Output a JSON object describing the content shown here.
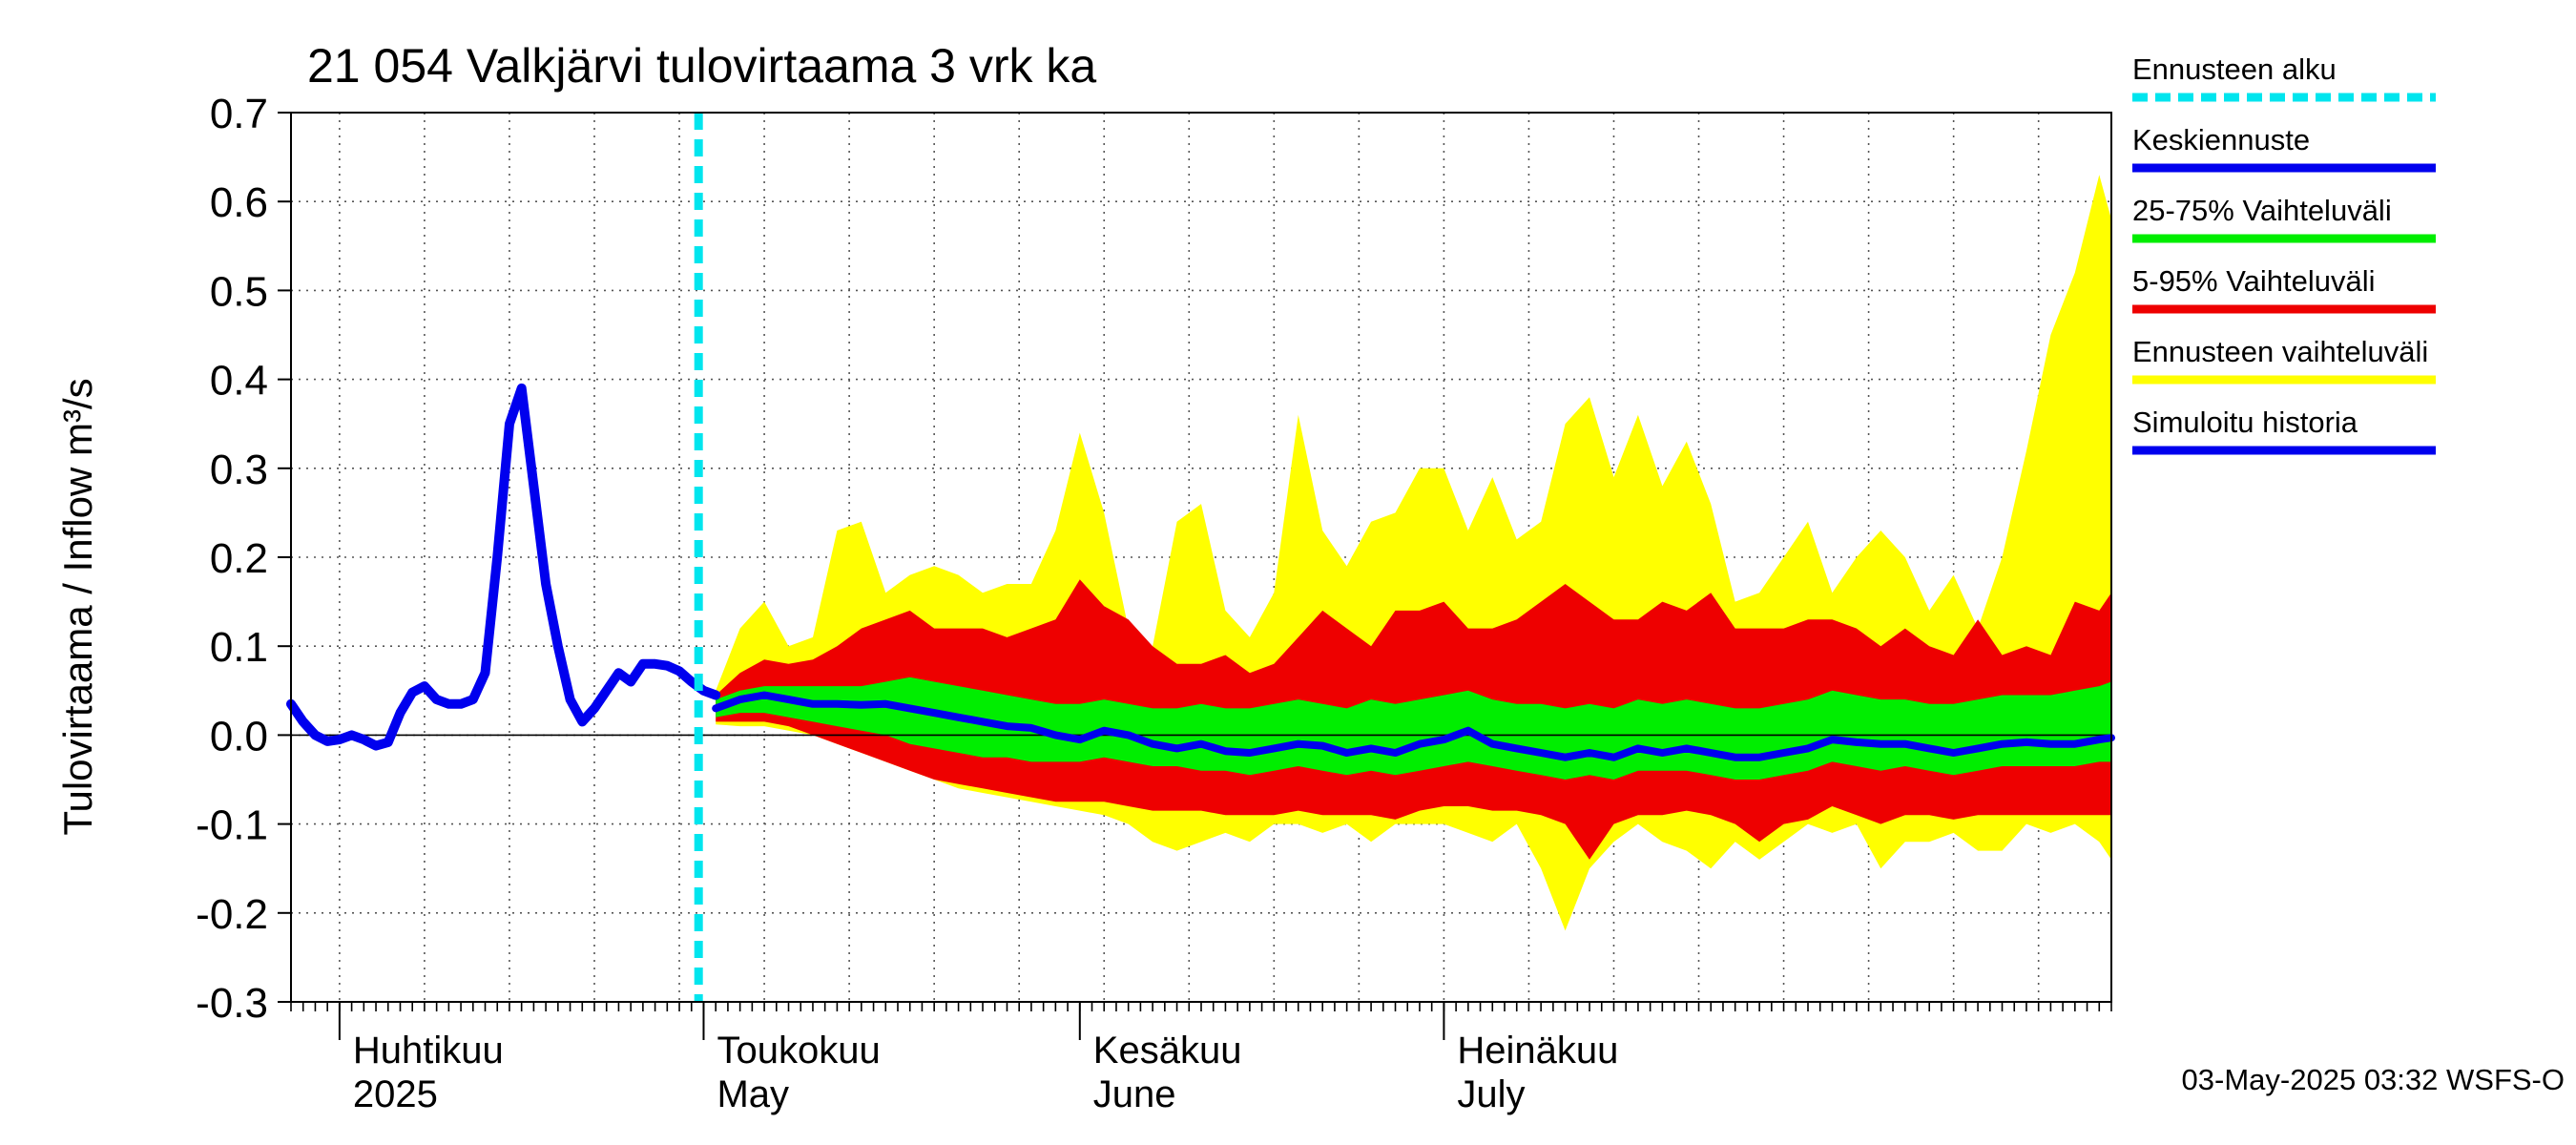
{
  "chart_data": {
    "type": "area",
    "title": "21 054 Valkjärvi tulovirtaama 3 vrk ka",
    "ylabel": "Tulovirtaama / Inflow    m³/s",
    "ylim": [
      -0.3,
      0.7
    ],
    "yticks": [
      "0.7",
      "0.6",
      "0.5",
      "0.4",
      "0.3",
      "0.2",
      "0.1",
      "0.0",
      "-0.1",
      "-0.2",
      "-0.3"
    ],
    "x_start": "2025-03-28",
    "x_end": "2025-08-25",
    "grid": true,
    "forecast_start": "2025-05-02",
    "month_labels": [
      {
        "date": "2025-04-01",
        "fi": "Huhtikuu",
        "en": "2025"
      },
      {
        "date": "2025-05-01",
        "fi": "Toukokuu",
        "en": "May"
      },
      {
        "date": "2025-06-01",
        "fi": "Kesäkuu",
        "en": "June"
      },
      {
        "date": "2025-07-01",
        "fi": "Heinäkuu",
        "en": "July"
      }
    ],
    "legend": [
      {
        "label": "Ennusteen alku",
        "color": "#00e5ee",
        "style": "dashed"
      },
      {
        "label": "Keskiennuste",
        "color": "#0000ee",
        "style": "solid"
      },
      {
        "label": "25-75% Vaihteluväli",
        "color": "#00ee00",
        "style": "solid"
      },
      {
        "label": "5-95% Vaihteluväli",
        "color": "#ee0000",
        "style": "solid"
      },
      {
        "label": "Ennusteen vaihteluväli",
        "color": "#ffff00",
        "style": "solid"
      },
      {
        "label": "Simuloitu historia",
        "color": "#0000ee",
        "style": "solid"
      }
    ],
    "timestamp": "03-May-2025 03:32 WSFS-O",
    "history": {
      "x": [
        "2025-03-28",
        "2025-03-29",
        "2025-03-30",
        "2025-03-31",
        "2025-04-01",
        "2025-04-02",
        "2025-04-03",
        "2025-04-04",
        "2025-04-05",
        "2025-04-06",
        "2025-04-07",
        "2025-04-08",
        "2025-04-09",
        "2025-04-10",
        "2025-04-11",
        "2025-04-12",
        "2025-04-13",
        "2025-04-14",
        "2025-04-15",
        "2025-04-16",
        "2025-04-17",
        "2025-04-18",
        "2025-04-19",
        "2025-04-20",
        "2025-04-21",
        "2025-04-22",
        "2025-04-23",
        "2025-04-24",
        "2025-04-25",
        "2025-04-26",
        "2025-04-27",
        "2025-04-28",
        "2025-04-29",
        "2025-04-30",
        "2025-05-01",
        "2025-05-02"
      ],
      "y": [
        0.035,
        0.015,
        0.0,
        -0.007,
        -0.005,
        0.0,
        -0.005,
        -0.012,
        -0.008,
        0.025,
        0.048,
        0.055,
        0.04,
        0.035,
        0.035,
        0.04,
        0.07,
        0.2,
        0.35,
        0.39,
        0.28,
        0.17,
        0.1,
        0.04,
        0.015,
        0.03,
        0.05,
        0.07,
        0.06,
        0.08,
        0.08,
        0.078,
        0.072,
        0.06,
        0.05,
        0.045
      ]
    },
    "forecast": {
      "x": [
        "2025-05-02",
        "2025-05-04",
        "2025-05-06",
        "2025-05-08",
        "2025-05-10",
        "2025-05-12",
        "2025-05-14",
        "2025-05-16",
        "2025-05-18",
        "2025-05-20",
        "2025-05-22",
        "2025-05-24",
        "2025-05-26",
        "2025-05-28",
        "2025-05-30",
        "2025-06-01",
        "2025-06-03",
        "2025-06-05",
        "2025-06-07",
        "2025-06-09",
        "2025-06-11",
        "2025-06-13",
        "2025-06-15",
        "2025-06-17",
        "2025-06-19",
        "2025-06-21",
        "2025-06-23",
        "2025-06-25",
        "2025-06-27",
        "2025-06-29",
        "2025-07-01",
        "2025-07-03",
        "2025-07-05",
        "2025-07-07",
        "2025-07-09",
        "2025-07-11",
        "2025-07-13",
        "2025-07-15",
        "2025-07-17",
        "2025-07-19",
        "2025-07-21",
        "2025-07-23",
        "2025-07-25",
        "2025-07-27",
        "2025-07-29",
        "2025-07-31",
        "2025-08-02",
        "2025-08-04",
        "2025-08-06",
        "2025-08-08",
        "2025-08-10",
        "2025-08-12",
        "2025-08-14",
        "2025-08-16",
        "2025-08-18",
        "2025-08-20",
        "2025-08-22",
        "2025-08-24",
        "2025-08-25"
      ],
      "median": [
        0.03,
        0.04,
        0.045,
        0.04,
        0.035,
        0.035,
        0.034,
        0.035,
        0.03,
        0.025,
        0.02,
        0.015,
        0.01,
        0.008,
        0.0,
        -0.005,
        0.005,
        0.0,
        -0.01,
        -0.015,
        -0.01,
        -0.018,
        -0.02,
        -0.015,
        -0.01,
        -0.012,
        -0.02,
        -0.015,
        -0.02,
        -0.01,
        -0.005,
        0.005,
        -0.01,
        -0.015,
        -0.02,
        -0.025,
        -0.02,
        -0.025,
        -0.015,
        -0.02,
        -0.015,
        -0.02,
        -0.025,
        -0.025,
        -0.02,
        -0.015,
        -0.005,
        -0.008,
        -0.01,
        -0.01,
        -0.015,
        -0.02,
        -0.015,
        -0.01,
        -0.008,
        -0.01,
        -0.01,
        -0.005,
        -0.003
      ],
      "p25": [
        0.02,
        0.025,
        0.025,
        0.02,
        0.015,
        0.01,
        0.005,
        0.0,
        -0.01,
        -0.015,
        -0.02,
        -0.025,
        -0.025,
        -0.03,
        -0.03,
        -0.03,
        -0.025,
        -0.03,
        -0.035,
        -0.035,
        -0.04,
        -0.04,
        -0.045,
        -0.04,
        -0.035,
        -0.04,
        -0.045,
        -0.04,
        -0.045,
        -0.04,
        -0.035,
        -0.03,
        -0.035,
        -0.04,
        -0.045,
        -0.05,
        -0.045,
        -0.05,
        -0.04,
        -0.04,
        -0.04,
        -0.045,
        -0.05,
        -0.05,
        -0.045,
        -0.04,
        -0.03,
        -0.035,
        -0.04,
        -0.035,
        -0.04,
        -0.045,
        -0.04,
        -0.035,
        -0.035,
        -0.035,
        -0.035,
        -0.03,
        -0.03
      ],
      "p75": [
        0.04,
        0.05,
        0.055,
        0.055,
        0.055,
        0.055,
        0.055,
        0.06,
        0.065,
        0.06,
        0.055,
        0.05,
        0.045,
        0.04,
        0.035,
        0.035,
        0.04,
        0.035,
        0.03,
        0.03,
        0.035,
        0.03,
        0.03,
        0.035,
        0.04,
        0.035,
        0.03,
        0.04,
        0.035,
        0.04,
        0.045,
        0.05,
        0.04,
        0.035,
        0.035,
        0.03,
        0.035,
        0.03,
        0.04,
        0.035,
        0.04,
        0.035,
        0.03,
        0.03,
        0.035,
        0.04,
        0.05,
        0.045,
        0.04,
        0.04,
        0.035,
        0.035,
        0.04,
        0.045,
        0.045,
        0.045,
        0.05,
        0.055,
        0.06
      ],
      "p5": [
        0.015,
        0.015,
        0.015,
        0.01,
        0.0,
        -0.01,
        -0.02,
        -0.03,
        -0.04,
        -0.05,
        -0.055,
        -0.06,
        -0.065,
        -0.07,
        -0.075,
        -0.075,
        -0.075,
        -0.08,
        -0.085,
        -0.085,
        -0.085,
        -0.09,
        -0.09,
        -0.09,
        -0.085,
        -0.09,
        -0.09,
        -0.09,
        -0.095,
        -0.085,
        -0.08,
        -0.08,
        -0.085,
        -0.085,
        -0.09,
        -0.1,
        -0.14,
        -0.1,
        -0.09,
        -0.09,
        -0.085,
        -0.09,
        -0.1,
        -0.12,
        -0.1,
        -0.095,
        -0.08,
        -0.09,
        -0.1,
        -0.09,
        -0.09,
        -0.095,
        -0.09,
        -0.09,
        -0.09,
        -0.09,
        -0.09,
        -0.09,
        -0.09
      ],
      "p95": [
        0.045,
        0.07,
        0.085,
        0.08,
        0.085,
        0.1,
        0.12,
        0.13,
        0.14,
        0.12,
        0.12,
        0.12,
        0.11,
        0.12,
        0.13,
        0.175,
        0.145,
        0.13,
        0.1,
        0.08,
        0.08,
        0.09,
        0.07,
        0.08,
        0.11,
        0.14,
        0.12,
        0.1,
        0.14,
        0.14,
        0.15,
        0.12,
        0.12,
        0.13,
        0.15,
        0.17,
        0.15,
        0.13,
        0.13,
        0.15,
        0.14,
        0.16,
        0.12,
        0.12,
        0.12,
        0.13,
        0.13,
        0.12,
        0.1,
        0.12,
        0.1,
        0.09,
        0.13,
        0.09,
        0.1,
        0.09,
        0.15,
        0.14,
        0.16
      ],
      "min": [
        0.012,
        0.01,
        0.01,
        0.005,
        0.0,
        -0.01,
        -0.02,
        -0.03,
        -0.04,
        -0.05,
        -0.06,
        -0.065,
        -0.07,
        -0.075,
        -0.08,
        -0.085,
        -0.09,
        -0.1,
        -0.12,
        -0.13,
        -0.12,
        -0.11,
        -0.12,
        -0.1,
        -0.1,
        -0.11,
        -0.1,
        -0.12,
        -0.1,
        -0.1,
        -0.1,
        -0.11,
        -0.12,
        -0.1,
        -0.15,
        -0.22,
        -0.15,
        -0.12,
        -0.1,
        -0.12,
        -0.13,
        -0.15,
        -0.12,
        -0.14,
        -0.12,
        -0.1,
        -0.11,
        -0.1,
        -0.15,
        -0.12,
        -0.12,
        -0.11,
        -0.13,
        -0.13,
        -0.1,
        -0.11,
        -0.1,
        -0.12,
        -0.14
      ],
      "max": [
        0.05,
        0.12,
        0.15,
        0.1,
        0.11,
        0.23,
        0.24,
        0.16,
        0.18,
        0.19,
        0.18,
        0.16,
        0.17,
        0.17,
        0.23,
        0.34,
        0.25,
        0.12,
        0.1,
        0.24,
        0.26,
        0.14,
        0.11,
        0.16,
        0.36,
        0.23,
        0.19,
        0.24,
        0.25,
        0.3,
        0.3,
        0.23,
        0.29,
        0.22,
        0.24,
        0.35,
        0.38,
        0.29,
        0.36,
        0.28,
        0.33,
        0.26,
        0.15,
        0.16,
        0.2,
        0.24,
        0.16,
        0.2,
        0.23,
        0.2,
        0.14,
        0.18,
        0.12,
        0.2,
        0.32,
        0.45,
        0.52,
        0.63,
        0.58
      ]
    }
  }
}
